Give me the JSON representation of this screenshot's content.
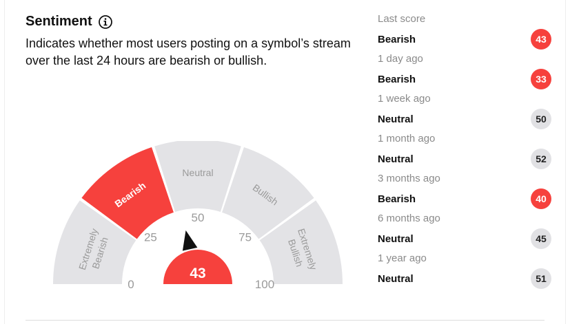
{
  "header": {
    "title": "Sentiment",
    "description": "Indicates whether most users posting on a symbol’s stream over the last 24 hours are bearish or bullish."
  },
  "gauge": {
    "score": "43",
    "score_value": 43,
    "segments": [
      {
        "label": "Extremely",
        "label2": "Bearish",
        "active": false
      },
      {
        "label": "Bearish",
        "active": true
      },
      {
        "label": "Neutral",
        "active": false
      },
      {
        "label": "Bullish",
        "active": false
      },
      {
        "label": "Extremely",
        "label2": "Bullish",
        "active": false
      }
    ],
    "ticks": [
      "0",
      "25",
      "50",
      "75",
      "100"
    ],
    "colors": {
      "active": "#f6413d",
      "inactive": "#e3e3e6",
      "inactive_text": "#9a9a9a",
      "needle": "#111111"
    }
  },
  "history": [
    {
      "time": "Last score",
      "label": "Bearish",
      "score": "43"
    },
    {
      "time": "1 day ago",
      "label": "Bearish",
      "score": "33"
    },
    {
      "time": "1 week ago",
      "label": "Neutral",
      "score": "50"
    },
    {
      "time": "1 month ago",
      "label": "Neutral",
      "score": "52"
    },
    {
      "time": "3 months ago",
      "label": "Bearish",
      "score": "40"
    },
    {
      "time": "6 months ago",
      "label": "Neutral",
      "score": "45"
    },
    {
      "time": "1 year ago",
      "label": "Neutral",
      "score": "51"
    }
  ]
}
